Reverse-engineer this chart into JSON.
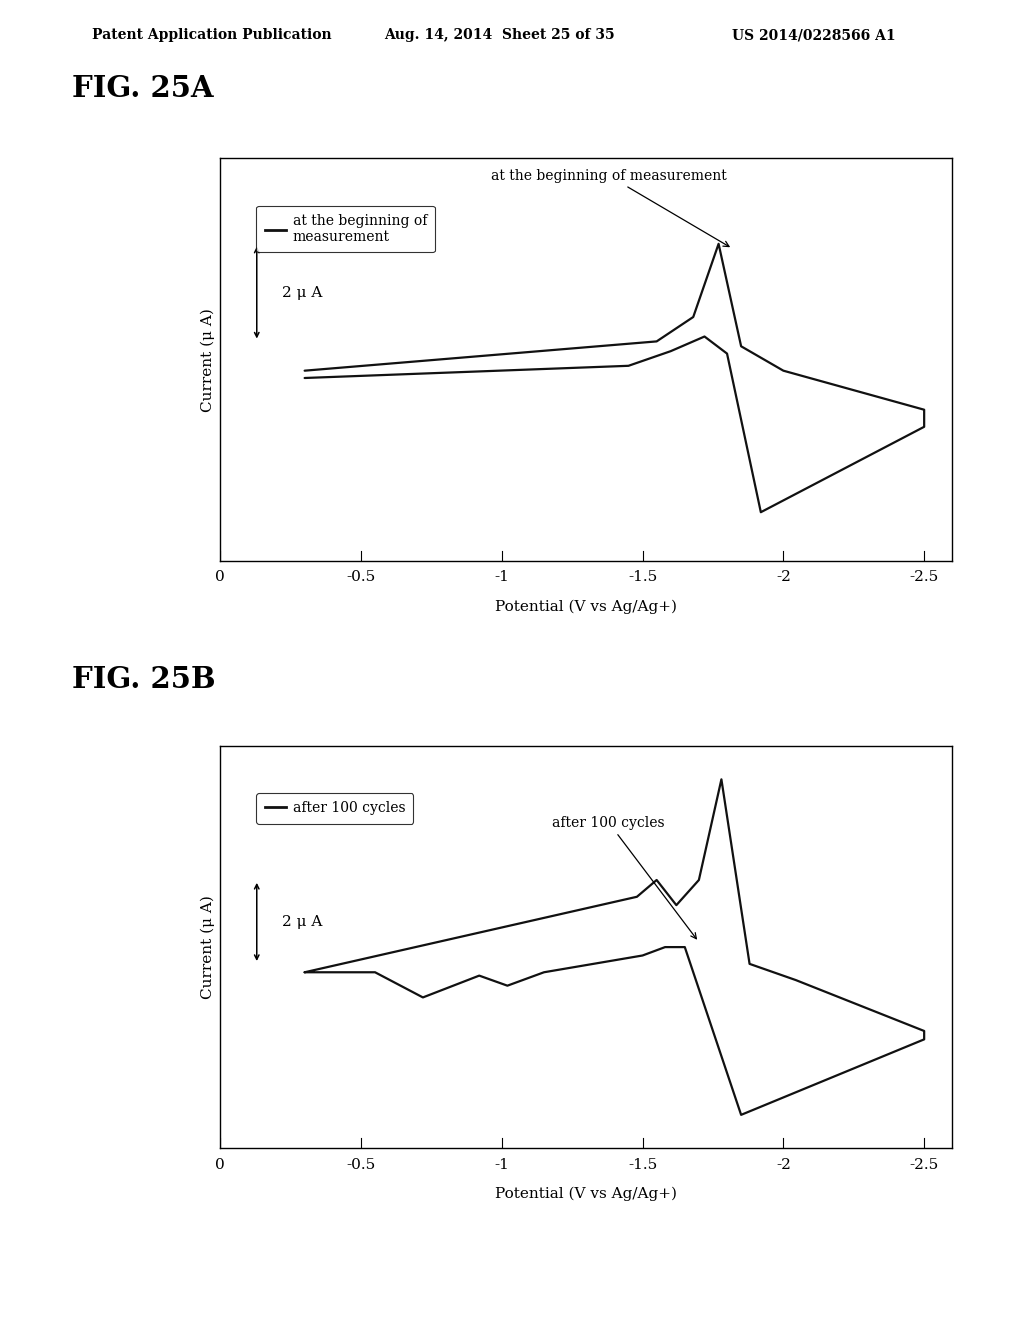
{
  "header_left": "Patent Application Publication",
  "header_mid": "Aug. 14, 2014  Sheet 25 of 35",
  "header_right": "US 2014/0228566 A1",
  "fig_a_label": "FIG. 25A",
  "fig_b_label": "FIG. 25B",
  "xlabel": "Potential (V vs Ag/Ag+)",
  "ylabel": "Current (μ A)",
  "scale_bar_label": "2 μ A",
  "legend_a": "at the beginning of\nmeasurement",
  "annotation_a": "at the beginning of measurement",
  "legend_b": "after 100 cycles",
  "annotation_b": "after 100 cycles",
  "bg_color": "#ffffff",
  "line_color": "#111111",
  "xtick_vals": [
    0.0,
    0.5,
    1.0,
    1.5,
    2.0,
    2.5
  ],
  "xtick_labels": [
    "0",
    "-0.5",
    "-1",
    "-1.5",
    "-2",
    "-2.5"
  ]
}
